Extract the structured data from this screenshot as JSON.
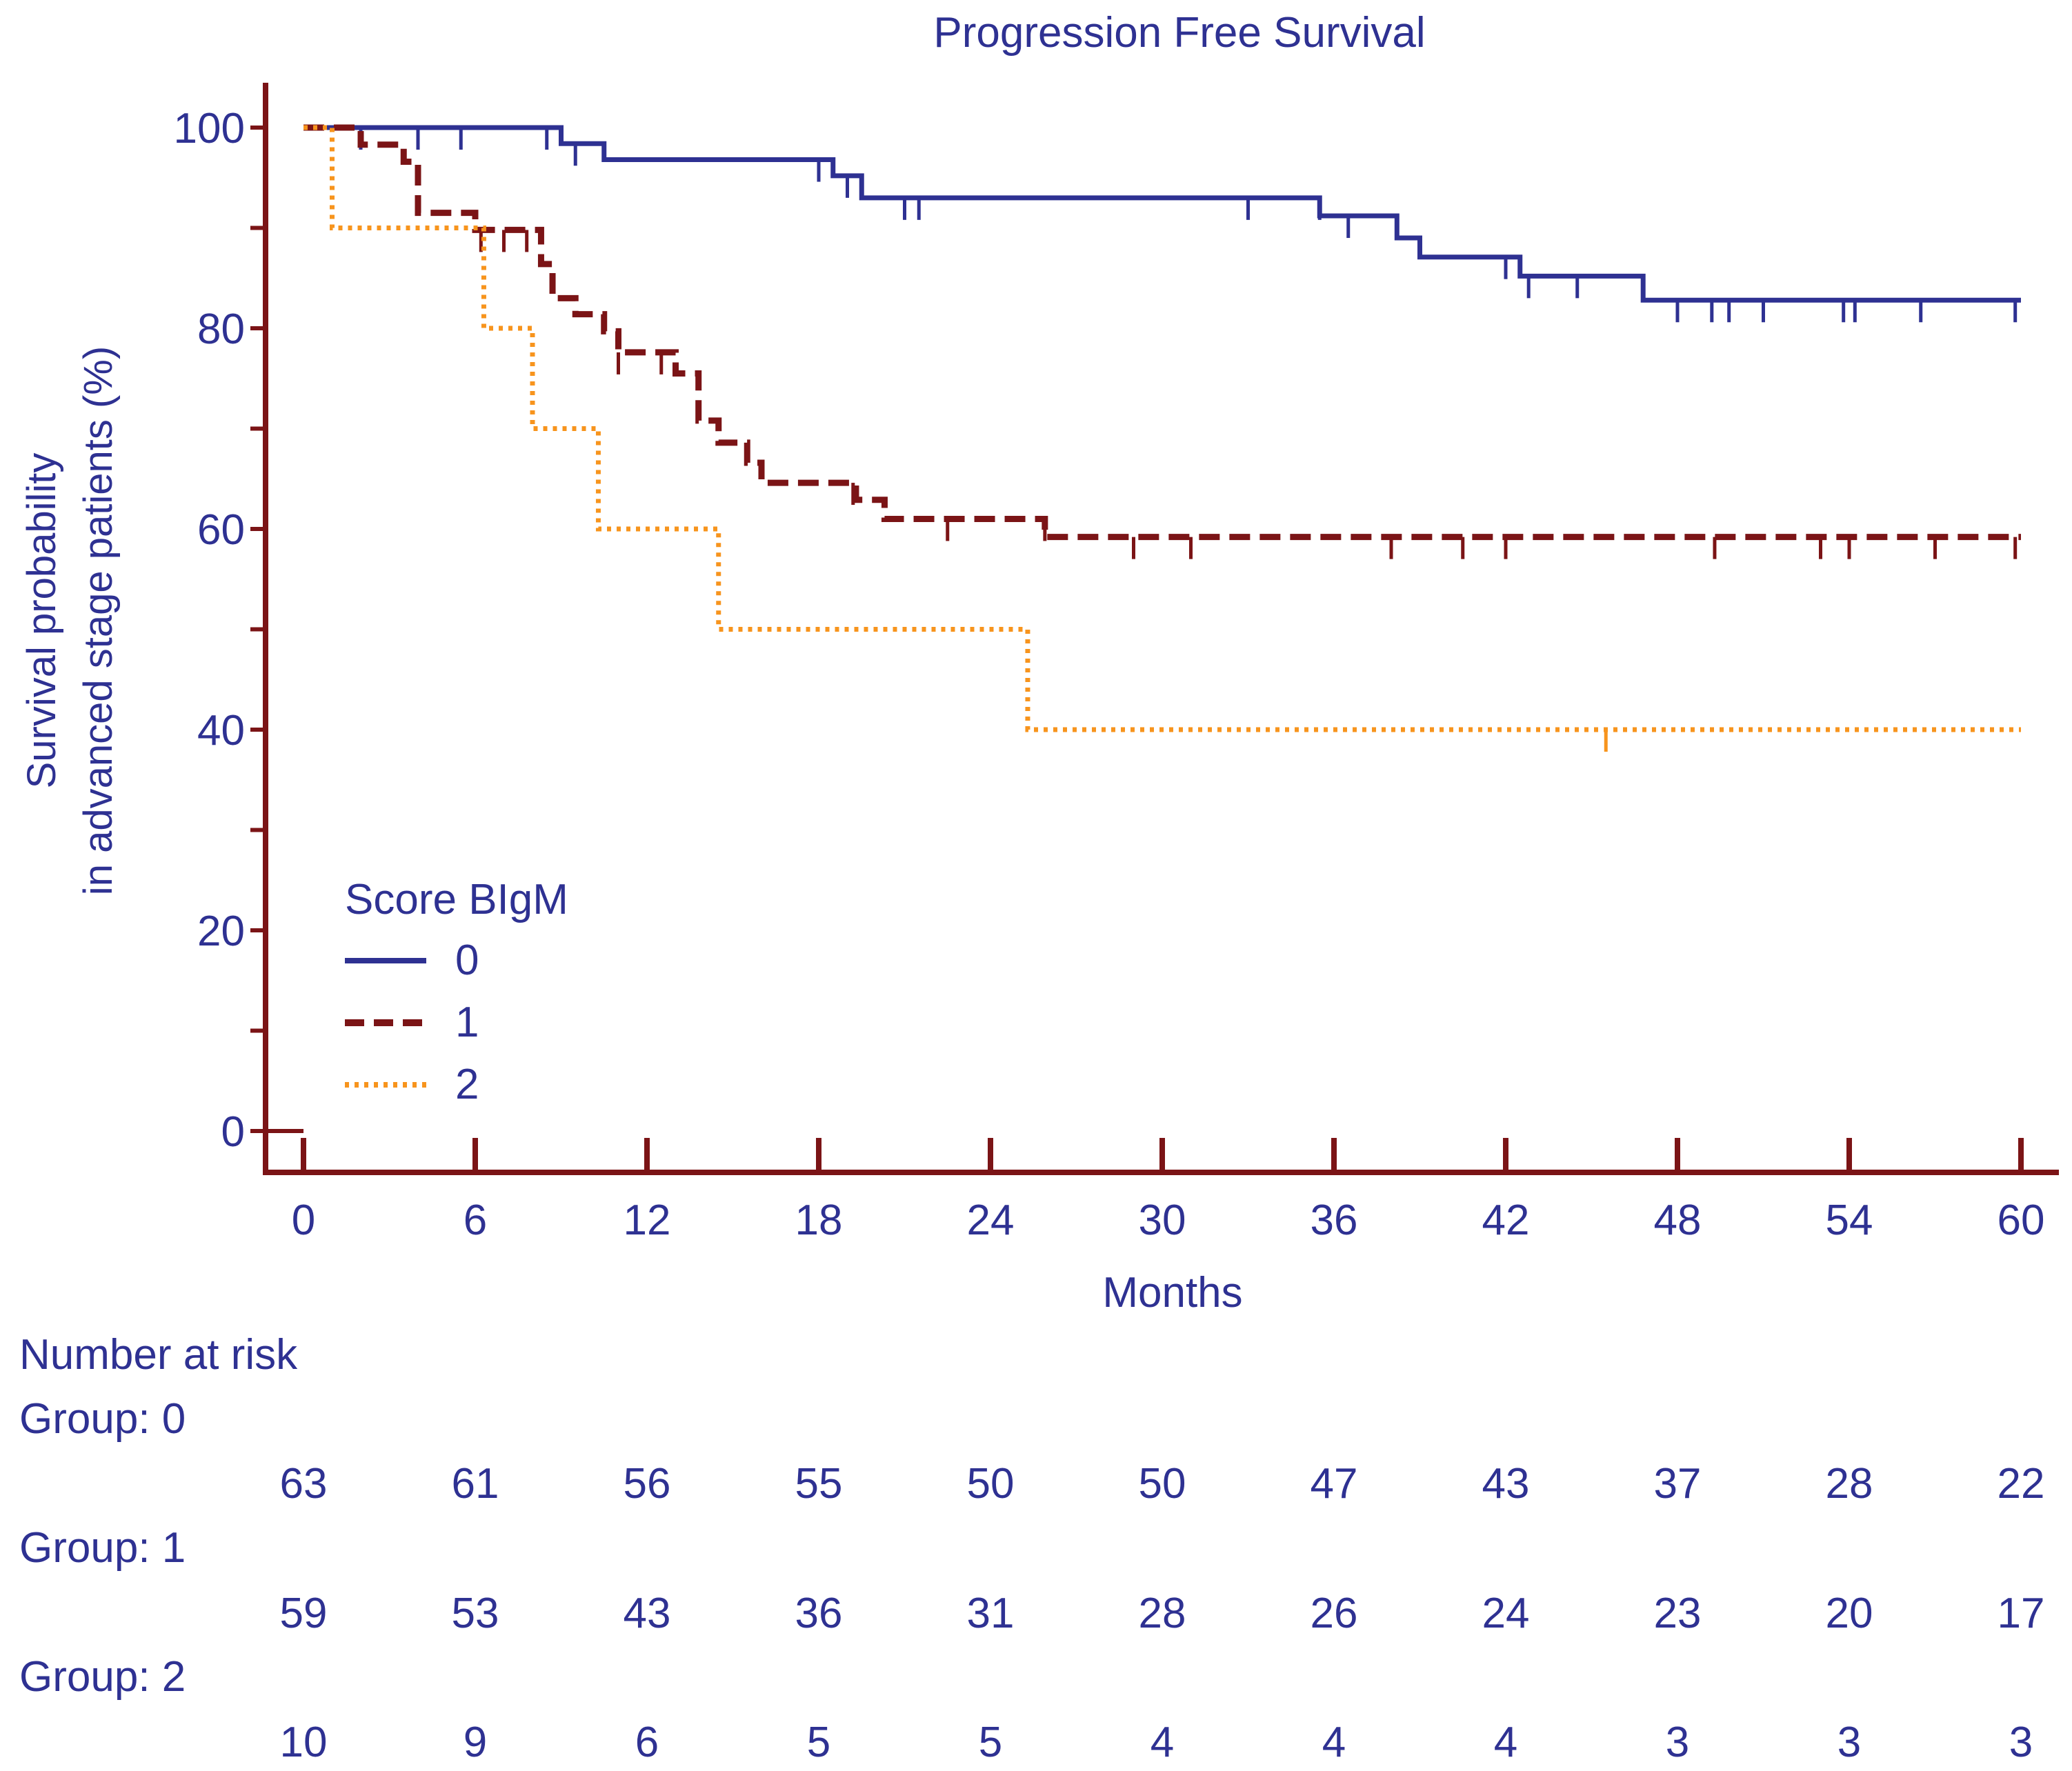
{
  "chart_data": {
    "type": "line",
    "subtype": "kaplan-meier",
    "title": "Progression Free Survival",
    "xlabel": "Months",
    "ylabel_line1": "Survival probability",
    "ylabel_line2": "in advanced stage patients (%)",
    "xlim": [
      0,
      60
    ],
    "ylim": [
      0,
      100
    ],
    "x_ticks": [
      "0",
      "6",
      "12",
      "18",
      "24",
      "30",
      "36",
      "42",
      "48",
      "54",
      "60"
    ],
    "y_ticks": [
      "0",
      "20",
      "40",
      "60",
      "80",
      "100"
    ],
    "legend": {
      "title": "Score BIgM",
      "position": "bottom-left",
      "entries": [
        "0",
        "1",
        "2"
      ]
    },
    "colors": {
      "axis": "#7b1416",
      "text": "#2e3192",
      "series_0": "#2e3192",
      "series_1": "#7b1416",
      "series_2": "#f7941d"
    },
    "series": [
      {
        "name": "0",
        "style": "solid",
        "steps": [
          [
            0,
            100
          ],
          [
            9,
            98.4
          ],
          [
            10.5,
            96.8
          ],
          [
            18.5,
            95.2
          ],
          [
            19.5,
            93.0
          ],
          [
            35.5,
            91.2
          ],
          [
            38.2,
            89.0
          ],
          [
            39,
            87.1
          ],
          [
            42.5,
            85.2
          ],
          [
            46.8,
            82.8
          ],
          [
            60,
            82.8
          ]
        ],
        "censored": [
          [
            2,
            100
          ],
          [
            4,
            100
          ],
          [
            5.5,
            100
          ],
          [
            8.5,
            100
          ],
          [
            9.5,
            98.4
          ],
          [
            18,
            96.8
          ],
          [
            19,
            95.2
          ],
          [
            21,
            93.0
          ],
          [
            21.5,
            93.0
          ],
          [
            33,
            93.0
          ],
          [
            35.5,
            93.0
          ],
          [
            36.5,
            91.2
          ],
          [
            42,
            87.1
          ],
          [
            42.8,
            85.2
          ],
          [
            44.5,
            85.2
          ],
          [
            48,
            82.8
          ],
          [
            49.2,
            82.8
          ],
          [
            49.8,
            82.8
          ],
          [
            51,
            82.8
          ],
          [
            53.8,
            82.8
          ],
          [
            54.2,
            82.8
          ],
          [
            56.5,
            82.8
          ],
          [
            59.8,
            82.8
          ]
        ]
      },
      {
        "name": "1",
        "style": "dashed",
        "steps": [
          [
            0,
            100
          ],
          [
            2,
            98.3
          ],
          [
            3.5,
            96.6
          ],
          [
            4,
            91.5
          ],
          [
            6,
            89.8
          ],
          [
            8.3,
            86.4
          ],
          [
            8.7,
            83.0
          ],
          [
            9.5,
            81.4
          ],
          [
            10.5,
            79.7
          ],
          [
            11,
            77.6
          ],
          [
            13,
            75.5
          ],
          [
            13.8,
            70.8
          ],
          [
            14.5,
            68.6
          ],
          [
            15.5,
            66.6
          ],
          [
            16,
            64.6
          ],
          [
            19.3,
            62.9
          ],
          [
            20.3,
            61.0
          ],
          [
            25.9,
            59.2
          ],
          [
            60,
            59.2
          ]
        ],
        "censored": [
          [
            6.2,
            89.8
          ],
          [
            7,
            89.8
          ],
          [
            7.8,
            89.8
          ],
          [
            11,
            77.6
          ],
          [
            12.5,
            77.6
          ],
          [
            19.2,
            64.6
          ],
          [
            22.5,
            61.0
          ],
          [
            25.9,
            61.0
          ],
          [
            29,
            59.2
          ],
          [
            31,
            59.2
          ],
          [
            38,
            59.2
          ],
          [
            40.5,
            59.2
          ],
          [
            42,
            59.2
          ],
          [
            49.3,
            59.2
          ],
          [
            53,
            59.2
          ],
          [
            54,
            59.2
          ],
          [
            57,
            59.2
          ],
          [
            59.8,
            59.2
          ]
        ]
      },
      {
        "name": "2",
        "style": "dotted",
        "steps": [
          [
            0,
            100
          ],
          [
            1,
            90
          ],
          [
            6.3,
            80
          ],
          [
            8,
            70
          ],
          [
            10.3,
            60
          ],
          [
            14.5,
            50
          ],
          [
            25.3,
            40
          ],
          [
            60,
            40
          ]
        ],
        "censored": [
          [
            45.5,
            40
          ]
        ]
      }
    ],
    "risk_table": {
      "title": "Number at risk",
      "groups": [
        {
          "label": "Group: 0",
          "values": [
            "63",
            "61",
            "56",
            "55",
            "50",
            "50",
            "47",
            "43",
            "37",
            "28",
            "22"
          ]
        },
        {
          "label": "Group: 1",
          "values": [
            "59",
            "53",
            "43",
            "36",
            "31",
            "28",
            "26",
            "24",
            "23",
            "20",
            "17"
          ]
        },
        {
          "label": "Group: 2",
          "values": [
            "10",
            "9",
            "6",
            "5",
            "5",
            "4",
            "4",
            "4",
            "3",
            "3",
            "3"
          ]
        }
      ]
    }
  }
}
